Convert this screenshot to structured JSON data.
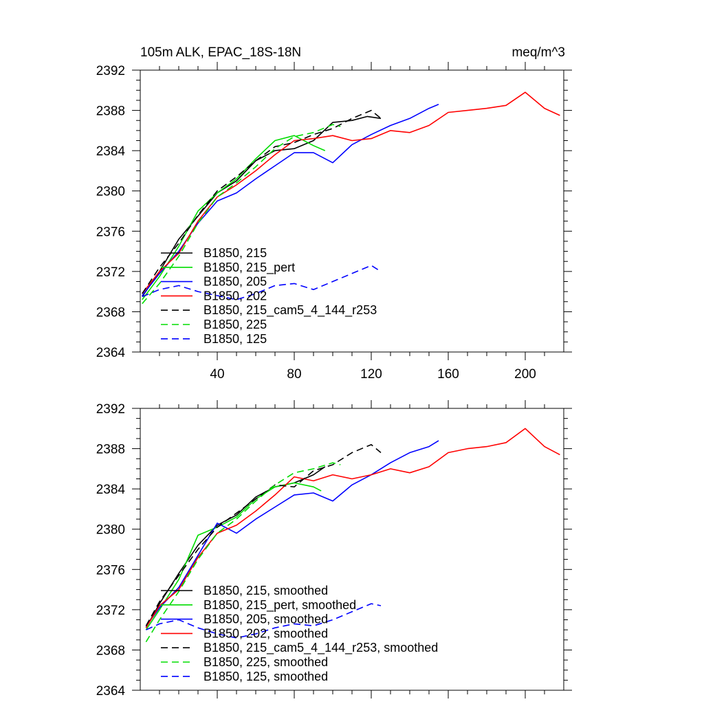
{
  "figure_title_left": "105m ALK, EPAC_18S-18N",
  "figure_title_right": "meq/m^3",
  "chart_data": [
    {
      "type": "line",
      "panel": "top",
      "title": "105m ALK, EPAC_18S-18N",
      "units": "meq/m^3",
      "xlabel": "",
      "ylabel": "",
      "xlim": [
        0,
        220
      ],
      "ylim": [
        2364,
        2392
      ],
      "xticks": [
        40,
        80,
        120,
        160,
        200
      ],
      "xtick_labels": [
        "40",
        "80",
        "120",
        "160",
        "200"
      ],
      "yticks": [
        2364,
        2368,
        2372,
        2376,
        2380,
        2384,
        2388,
        2392
      ],
      "ytick_labels": [
        "2364",
        "2368",
        "2372",
        "2376",
        "2380",
        "2384",
        "2388",
        "2392"
      ],
      "legend_position": "lower-left",
      "series": [
        {
          "name": "B1850, 215",
          "color": "#000000",
          "dash": "solid",
          "x": [
            1,
            10,
            20,
            30,
            40,
            50,
            60,
            70,
            80,
            90,
            100,
            110,
            118,
            125
          ],
          "y": [
            2369.5,
            2372.0,
            2375.2,
            2377.5,
            2379.8,
            2381.0,
            2383.0,
            2384.0,
            2384.2,
            2385.0,
            2386.8,
            2387.0,
            2387.4,
            2387.2
          ]
        },
        {
          "name": "B1850, 215_pert",
          "color": "#00dd00",
          "dash": "solid",
          "x": [
            1,
            10,
            20,
            30,
            40,
            50,
            60,
            70,
            80,
            90,
            96
          ],
          "y": [
            2369.2,
            2371.5,
            2374.5,
            2378.0,
            2379.8,
            2381.2,
            2383.2,
            2385.0,
            2385.5,
            2384.5,
            2384.0
          ]
        },
        {
          "name": "B1850, 205",
          "color": "#0000ff",
          "dash": "solid",
          "x": [
            1,
            10,
            20,
            30,
            40,
            50,
            60,
            70,
            80,
            90,
            100,
            110,
            120,
            130,
            140,
            150,
            155
          ],
          "y": [
            2369.6,
            2371.8,
            2374.0,
            2376.8,
            2379.0,
            2379.8,
            2381.2,
            2382.5,
            2383.8,
            2383.8,
            2382.8,
            2384.6,
            2385.6,
            2386.5,
            2387.2,
            2388.2,
            2388.6
          ]
        },
        {
          "name": "B1850, 202",
          "color": "#ff0000",
          "dash": "solid",
          "x": [
            1,
            10,
            20,
            30,
            40,
            50,
            60,
            70,
            80,
            90,
            100,
            110,
            120,
            130,
            140,
            150,
            160,
            170,
            180,
            190,
            200,
            210,
            218
          ],
          "y": [
            2369.8,
            2372.0,
            2373.8,
            2377.0,
            2379.4,
            2380.6,
            2382.0,
            2383.6,
            2385.0,
            2385.2,
            2385.5,
            2385.0,
            2385.2,
            2386.0,
            2385.8,
            2386.5,
            2387.8,
            2388.0,
            2388.2,
            2388.5,
            2389.8,
            2388.2,
            2387.5
          ]
        },
        {
          "name": "B1850, 215_cam5_4_144_r253",
          "color": "#000000",
          "dash": "dashed",
          "x": [
            1,
            10,
            20,
            30,
            40,
            50,
            60,
            70,
            80,
            90,
            100,
            110,
            120,
            125
          ],
          "y": [
            2369.8,
            2372.4,
            2374.8,
            2377.6,
            2380.0,
            2381.4,
            2383.0,
            2384.4,
            2384.8,
            2385.6,
            2386.2,
            2387.2,
            2388.0,
            2387.2
          ]
        },
        {
          "name": "B1850, 225",
          "color": "#00dd00",
          "dash": "dashed",
          "x": [
            1,
            10,
            20,
            30,
            40,
            50,
            60,
            70,
            80,
            90,
            100,
            104
          ],
          "y": [
            2368.8,
            2370.8,
            2373.5,
            2376.8,
            2379.4,
            2380.8,
            2382.4,
            2384.2,
            2385.4,
            2385.8,
            2386.6,
            2386.4
          ]
        },
        {
          "name": "B1850, 125",
          "color": "#0000ff",
          "dash": "dashed",
          "x": [
            1,
            10,
            20,
            30,
            40,
            50,
            60,
            70,
            80,
            90,
            100,
            110,
            120,
            125
          ],
          "y": [
            2369.5,
            2370.2,
            2370.6,
            2370.0,
            2369.6,
            2369.2,
            2369.8,
            2370.6,
            2370.8,
            2370.2,
            2371.0,
            2371.8,
            2372.6,
            2372.0
          ]
        }
      ]
    },
    {
      "type": "line",
      "panel": "bottom",
      "title": "",
      "xlabel": "",
      "ylabel": "",
      "xlim": [
        0,
        220
      ],
      "ylim": [
        2364,
        2392
      ],
      "xticks": [
        40,
        80,
        120,
        160,
        200
      ],
      "xtick_labels": [],
      "yticks": [
        2364,
        2368,
        2372,
        2376,
        2380,
        2384,
        2388,
        2392
      ],
      "ytick_labels": [
        "2364",
        "2368",
        "2372",
        "2376",
        "2380",
        "2384",
        "2388",
        "2392"
      ],
      "legend_position": "lower-left",
      "series": [
        {
          "name": "B1850, 215, smoothed",
          "color": "#000000",
          "dash": "solid",
          "x": [
            3,
            10,
            20,
            30,
            40,
            50,
            60,
            70,
            80,
            90,
            96
          ],
          "y": [
            2370.2,
            2372.6,
            2375.6,
            2378.4,
            2380.4,
            2381.4,
            2383.2,
            2384.2,
            2384.6,
            2385.4,
            2386.2
          ]
        },
        {
          "name": "B1850, 215_pert, smoothed",
          "color": "#00dd00",
          "dash": "solid",
          "x": [
            3,
            10,
            20,
            30,
            40,
            50,
            60,
            70,
            80,
            90,
            94
          ],
          "y": [
            2370.0,
            2372.0,
            2375.0,
            2379.4,
            2380.2,
            2381.2,
            2383.0,
            2384.2,
            2384.6,
            2384.2,
            2383.8
          ]
        },
        {
          "name": "B1850, 205, smoothed",
          "color": "#0000ff",
          "dash": "solid",
          "x": [
            3,
            10,
            20,
            30,
            40,
            50,
            60,
            70,
            80,
            90,
            100,
            110,
            120,
            130,
            140,
            150,
            155
          ],
          "y": [
            2370.3,
            2372.2,
            2374.2,
            2377.4,
            2380.6,
            2379.6,
            2381.0,
            2382.2,
            2383.4,
            2383.6,
            2382.8,
            2384.4,
            2385.4,
            2386.6,
            2387.6,
            2388.2,
            2388.8
          ]
        },
        {
          "name": "B1850, 202, smoothed",
          "color": "#ff0000",
          "dash": "solid",
          "x": [
            3,
            10,
            20,
            30,
            40,
            50,
            60,
            70,
            80,
            90,
            100,
            110,
            120,
            130,
            140,
            150,
            160,
            170,
            180,
            190,
            200,
            210,
            218
          ],
          "y": [
            2370.2,
            2372.4,
            2374.0,
            2377.2,
            2379.6,
            2380.4,
            2381.8,
            2383.4,
            2385.2,
            2384.8,
            2385.4,
            2385.0,
            2385.4,
            2386.0,
            2385.6,
            2386.2,
            2387.6,
            2388.0,
            2388.2,
            2388.6,
            2390.0,
            2388.2,
            2387.4
          ]
        },
        {
          "name": "B1850, 215_cam5_4_144_r253, smoothed",
          "color": "#000000",
          "dash": "dashed",
          "x": [
            3,
            10,
            20,
            30,
            40,
            50,
            60,
            70,
            80,
            90,
            100,
            110,
            120,
            125
          ],
          "y": [
            2370.4,
            2372.8,
            2375.4,
            2378.0,
            2380.2,
            2381.6,
            2383.0,
            2384.4,
            2384.2,
            2385.8,
            2386.4,
            2387.6,
            2388.4,
            2387.6
          ]
        },
        {
          "name": "B1850, 225, smoothed",
          "color": "#00dd00",
          "dash": "dashed",
          "x": [
            3,
            10,
            20,
            30,
            40,
            50,
            60,
            70,
            80,
            90,
            100,
            104
          ],
          "y": [
            2368.8,
            2371.0,
            2373.8,
            2377.0,
            2379.6,
            2381.0,
            2382.8,
            2384.4,
            2385.6,
            2386.0,
            2386.6,
            2386.4
          ]
        },
        {
          "name": "B1850, 125, smoothed",
          "color": "#0000ff",
          "dash": "dashed",
          "x": [
            3,
            10,
            20,
            30,
            40,
            50,
            60,
            70,
            80,
            90,
            100,
            110,
            120,
            125
          ],
          "y": [
            2370.0,
            2370.6,
            2371.0,
            2370.2,
            2369.6,
            2369.2,
            2369.6,
            2370.2,
            2370.6,
            2370.4,
            2371.0,
            2371.8,
            2372.6,
            2372.4
          ]
        }
      ]
    }
  ]
}
